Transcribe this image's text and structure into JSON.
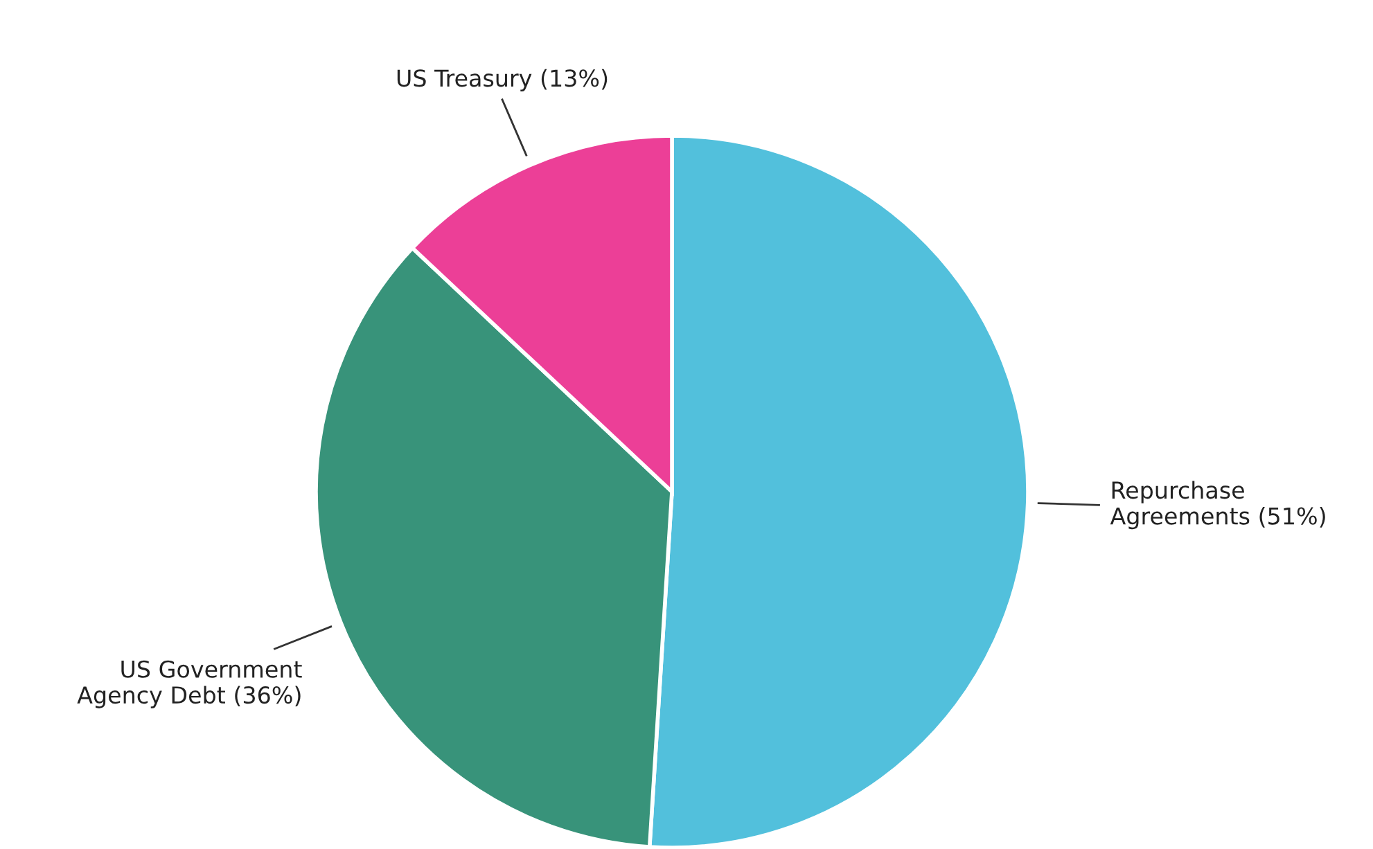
{
  "chart_data": {
    "type": "pie",
    "categories": [
      "Repurchase Agreements (51%)",
      "US Government Agency Debt (36%)",
      "US Treasury (13%)"
    ],
    "values": [
      51,
      36,
      13
    ],
    "colors": [
      "#52c0dc",
      "#38937a",
      "#ec3f97"
    ]
  }
}
